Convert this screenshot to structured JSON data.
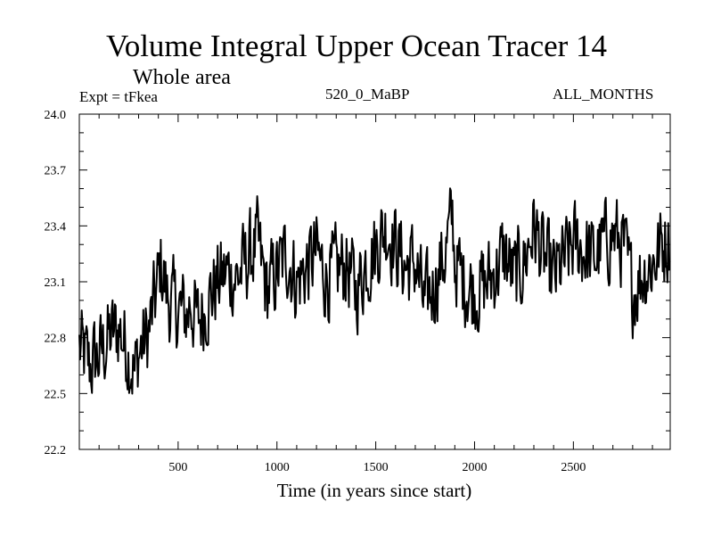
{
  "chart_data": {
    "type": "line",
    "title": "Volume Integral Upper Ocean Tracer 14",
    "subtitle": "Whole area",
    "annotations": {
      "left": "Expt = tFkea",
      "center": "520_0_MaBP",
      "right": "ALL_MONTHS"
    },
    "xlabel": "Time (in years since start)",
    "ylabel": "",
    "xlim": [
      0,
      2990
    ],
    "ylim": [
      22.2,
      24.0
    ],
    "x_ticks": [
      500,
      1000,
      1500,
      2000,
      2500
    ],
    "y_ticks": [
      22.2,
      22.5,
      22.8,
      23.1,
      23.4,
      23.7,
      24.0
    ],
    "y_tick_labels": [
      "22.2",
      "22.5",
      "22.8",
      "23.1",
      "23.4",
      "23.7",
      "24.0"
    ],
    "x_tick_labels": [
      "500",
      "1000",
      "1500",
      "2000",
      "2500"
    ],
    "grid": false,
    "series": [
      {
        "color": "#000000",
        "x": [
          0,
          50,
          100,
          150,
          200,
          250,
          280,
          300,
          350,
          400,
          410,
          450,
          500,
          550,
          560,
          600,
          650,
          700,
          750,
          800,
          850,
          900,
          950,
          1000,
          1050,
          1100,
          1150,
          1200,
          1250,
          1300,
          1350,
          1400,
          1450,
          1500,
          1550,
          1600,
          1650,
          1700,
          1750,
          1760,
          1800,
          1850,
          1890,
          1900,
          1950,
          2000,
          2050,
          2100,
          2150,
          2200,
          2250,
          2300,
          2350,
          2400,
          2450,
          2500,
          2550,
          2600,
          2650,
          2700,
          2750,
          2800,
          2850,
          2900,
          2950,
          2990
        ],
        "values": [
          22.75,
          22.65,
          22.7,
          22.8,
          22.85,
          22.72,
          22.6,
          22.72,
          22.82,
          23.1,
          23.2,
          23.0,
          22.95,
          22.92,
          23.0,
          22.88,
          23.0,
          23.1,
          23.15,
          23.12,
          23.22,
          23.3,
          23.05,
          23.15,
          23.25,
          23.1,
          23.18,
          23.25,
          23.12,
          23.15,
          23.2,
          23.05,
          23.2,
          23.28,
          23.4,
          23.3,
          23.18,
          23.2,
          22.95,
          23.0,
          23.1,
          23.25,
          23.45,
          23.2,
          23.1,
          23.05,
          23.08,
          23.15,
          23.25,
          23.12,
          23.2,
          23.4,
          23.22,
          23.12,
          23.2,
          23.3,
          23.28,
          23.22,
          23.3,
          23.35,
          23.3,
          23.05,
          23.15,
          23.2,
          23.3,
          23.35
        ]
      }
    ]
  }
}
